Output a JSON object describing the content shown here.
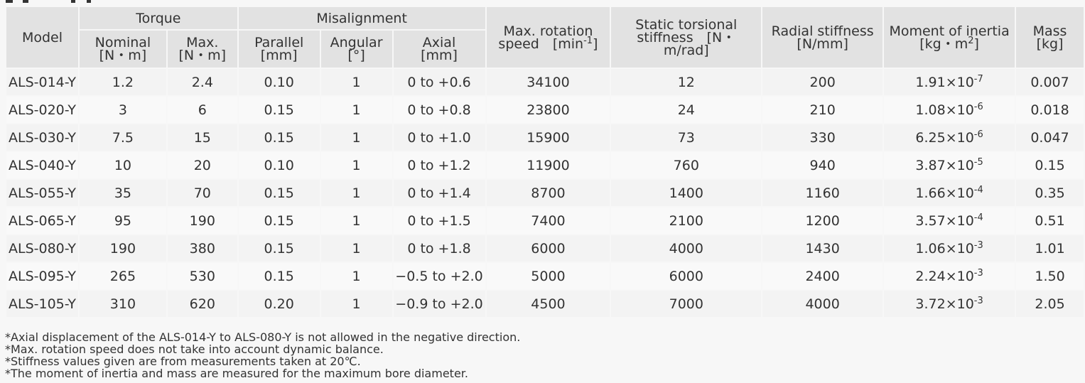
{
  "header": {
    "model": "Model",
    "torque": "Torque",
    "nominal": "Nominal",
    "nominal_unit": "[N・m]",
    "max": "Max.",
    "max_unit": "[N・m]",
    "misalignment": "Misalignment",
    "parallel": "Parallel",
    "parallel_unit": "[mm]",
    "angular": "Angular",
    "angular_unit": "[°]",
    "axial": "Axial",
    "axial_unit": "[mm]",
    "speed_line1": "Max. rotation",
    "speed_line2": "speed　[min",
    "speed_exp": "-1",
    "speed_close": "]",
    "torsional_line1": "Static torsional",
    "torsional_line2": "stiffness　[N・",
    "torsional_line3": "m/rad]",
    "radial": "Radial stiffness",
    "radial_unit": "[N/mm]",
    "inertia": "Moment of inertia",
    "inertia_unit": "[kg・m",
    "inertia_exp": "2",
    "inertia_close": "]",
    "mass": "Mass",
    "mass_unit": "[kg]"
  },
  "rows": [
    {
      "model": "ALS-014-Y",
      "nominal": "1.2",
      "max": "2.4",
      "parallel": "0.10",
      "angular": "1",
      "axial": "0 to +0.6",
      "speed": "34100",
      "torsional": "12",
      "radial": "200",
      "inertia_base": "1.91×10",
      "inertia_exp": "-7",
      "mass": "0.007"
    },
    {
      "model": "ALS-020-Y",
      "nominal": "3",
      "max": "6",
      "parallel": "0.15",
      "angular": "1",
      "axial": "0 to +0.8",
      "speed": "23800",
      "torsional": "24",
      "radial": "210",
      "inertia_base": "1.08×10",
      "inertia_exp": "-6",
      "mass": "0.018"
    },
    {
      "model": "ALS-030-Y",
      "nominal": "7.5",
      "max": "15",
      "parallel": "0.15",
      "angular": "1",
      "axial": "0 to +1.0",
      "speed": "15900",
      "torsional": "73",
      "radial": "330",
      "inertia_base": "6.25×10",
      "inertia_exp": "-6",
      "mass": "0.047"
    },
    {
      "model": "ALS-040-Y",
      "nominal": "10",
      "max": "20",
      "parallel": "0.10",
      "angular": "1",
      "axial": "0 to +1.2",
      "speed": "11900",
      "torsional": "760",
      "radial": "940",
      "inertia_base": "3.87×10",
      "inertia_exp": "-5",
      "mass": "0.15"
    },
    {
      "model": "ALS-055-Y",
      "nominal": "35",
      "max": "70",
      "parallel": "0.15",
      "angular": "1",
      "axial": "0 to +1.4",
      "speed": "8700",
      "torsional": "1400",
      "radial": "1160",
      "inertia_base": "1.66×10",
      "inertia_exp": "-4",
      "mass": "0.35"
    },
    {
      "model": "ALS-065-Y",
      "nominal": "95",
      "max": "190",
      "parallel": "0.15",
      "angular": "1",
      "axial": "0 to +1.5",
      "speed": "7400",
      "torsional": "2100",
      "radial": "1200",
      "inertia_base": "3.57×10",
      "inertia_exp": "-4",
      "mass": "0.51"
    },
    {
      "model": "ALS-080-Y",
      "nominal": "190",
      "max": "380",
      "parallel": "0.15",
      "angular": "1",
      "axial": "0 to +1.8",
      "speed": "6000",
      "torsional": "4000",
      "radial": "1430",
      "inertia_base": "1.06×10",
      "inertia_exp": "-3",
      "mass": "1.01"
    },
    {
      "model": "ALS-095-Y",
      "nominal": "265",
      "max": "530",
      "parallel": "0.15",
      "angular": "1",
      "axial": "−0.5 to +2.0",
      "speed": "5000",
      "torsional": "6000",
      "radial": "2400",
      "inertia_base": "2.24×10",
      "inertia_exp": "-3",
      "mass": "1.50"
    },
    {
      "model": "ALS-105-Y",
      "nominal": "310",
      "max": "620",
      "parallel": "0.20",
      "angular": "1",
      "axial": "−0.9 to +2.0",
      "speed": "4500",
      "torsional": "7000",
      "radial": "4000",
      "inertia_base": "3.72×10",
      "inertia_exp": "-3",
      "mass": "2.05"
    }
  ],
  "notes": [
    "*Axial displacement of the ALS-014-Y to ALS-080-Y is not allowed in the negative direction.",
    "*Max. rotation speed does not take into account dynamic balance.",
    "*Stiffness values given are from measurements taken at 20℃.",
    "*The moment of inertia and mass are measured for the maximum bore diameter."
  ]
}
